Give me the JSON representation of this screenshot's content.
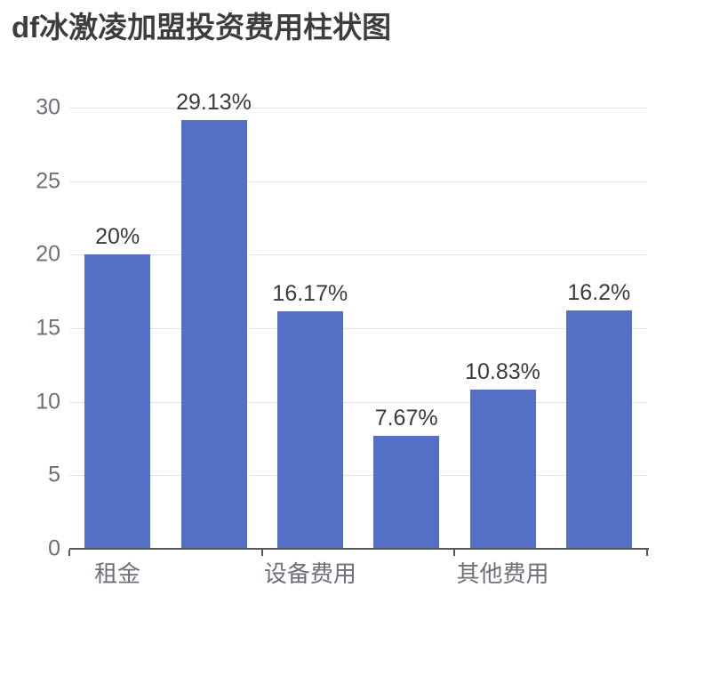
{
  "title": "df冰激凌加盟投资费用柱状图",
  "colors": {
    "background": "#FFFFFF",
    "bar": "#5470C6",
    "grid_line": "#E0E6F1",
    "axis_line": "#54575F",
    "axis_text": "#6E7079",
    "value_text": "#3A3A3A",
    "title_text": "#3D3D3D"
  },
  "chart_data": {
    "type": "bar",
    "title": "df冰激凌加盟投资费用柱状图",
    "categories": [
      "租金",
      "设备费用",
      "其他费用"
    ],
    "bars": [
      {
        "category": "租金",
        "value": 20,
        "label": "20%"
      },
      {
        "category": "租金",
        "value": 29.13,
        "label": "29.13%"
      },
      {
        "category": "设备费用",
        "value": 16.17,
        "label": "16.17%"
      },
      {
        "category": "设备费用",
        "value": 7.67,
        "label": "7.67%"
      },
      {
        "category": "其他费用",
        "value": 10.83,
        "label": "10.83%"
      },
      {
        "category": "其他费用",
        "value": 16.2,
        "label": "16.2%"
      }
    ],
    "y_ticks": [
      0,
      5,
      10,
      15,
      20,
      25,
      30
    ],
    "ylim": [
      0,
      30
    ],
    "xlabel": "",
    "ylabel": "",
    "grid": true,
    "legend": false,
    "layout_hints": {
      "bars_per_category": 2,
      "category_labels_centered_under_bar_indexes": [
        0,
        2,
        4
      ],
      "x_axis_ticks_at_category_boundaries": true,
      "value_labels_position": "above-bar"
    }
  }
}
